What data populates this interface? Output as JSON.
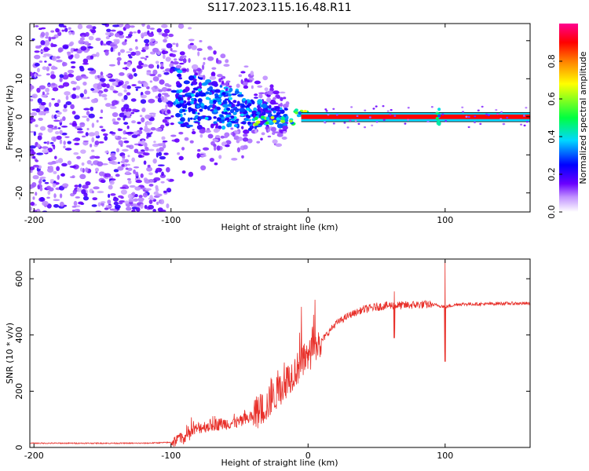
{
  "title": "S117.2023.115.16.48.R11",
  "chart_data": [
    {
      "type": "heatmap",
      "xlabel": "Height of straight line (km)",
      "ylabel": "Frequency (Hz)",
      "xlim": [
        -203,
        162
      ],
      "ylim": [
        -25,
        24.5
      ],
      "xticks": [
        "-200",
        "-100",
        "0",
        "100"
      ],
      "yticks": [
        "20",
        "10",
        "0",
        "-10",
        "-20"
      ],
      "colorbar": {
        "label": "Normalized spectral amplitude",
        "range": [
          0.0,
          1.0
        ],
        "ticks": [
          "0.0",
          "0.2",
          "0.4",
          "0.6",
          "0.8"
        ],
        "colors": [
          "#ffffff",
          "#8000ff",
          "#0000ff",
          "#00e0ff",
          "#00ff40",
          "#ffff00",
          "#ff8000",
          "#ff0000",
          "#ff00a0"
        ]
      },
      "description_points": [
        {
          "x": -160,
          "y": 0,
          "value": 0.15
        },
        {
          "x": -85,
          "y": 5,
          "value": 0.25
        },
        {
          "x": -60,
          "y": 0,
          "value": 0.2
        },
        {
          "x": -30,
          "y": -1,
          "value": 0.4
        },
        {
          "x": -15,
          "y": 0.5,
          "value": 0.7
        },
        {
          "x": 0,
          "y": 1,
          "value": 0.5
        },
        {
          "x": 10,
          "y": 0,
          "value": 0.85
        },
        {
          "x": 50,
          "y": 0,
          "value": 0.9
        },
        {
          "x": 95,
          "y": 0,
          "value": 0.55
        },
        {
          "x": 160,
          "y": 0,
          "value": 0.9
        }
      ]
    },
    {
      "type": "line",
      "xlabel": "Height of straight line (km)",
      "ylabel": "SNR (10 * v/v)",
      "xlim": [
        -203,
        162
      ],
      "ylim": [
        0,
        670
      ],
      "xticks": [
        "-200",
        "-100",
        "0",
        "100"
      ],
      "yticks": [
        "0",
        "200",
        "400",
        "600"
      ],
      "color": "#e8302a",
      "trend": {
        "x": [
          -203,
          -120,
          -100,
          -90,
          -80,
          -70,
          -60,
          -50,
          -40,
          -30,
          -20,
          -10,
          0,
          10,
          20,
          30,
          40,
          50,
          60,
          70,
          80,
          90,
          95,
          100,
          105,
          110,
          120,
          130,
          140,
          150,
          162
        ],
        "y": [
          15,
          15,
          18,
          35,
          70,
          80,
          85,
          90,
          110,
          150,
          210,
          270,
          320,
          380,
          440,
          470,
          490,
          500,
          505,
          505,
          508,
          508,
          505,
          500,
          505,
          510,
          510,
          510,
          512,
          512,
          512
        ]
      },
      "spikes": [
        {
          "x": 100,
          "y_max": 665,
          "y_min": 305
        },
        {
          "x": 5,
          "y_max": 525
        },
        {
          "x": -5,
          "y_max": 500
        },
        {
          "x": 63,
          "y_max": 555
        }
      ]
    }
  ]
}
